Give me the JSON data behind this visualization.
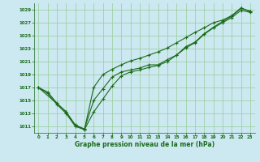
{
  "background_color": "#cce8f0",
  "plot_bg_color": "#cce8f0",
  "grid_color": "#99cc99",
  "line_color": "#1a6b1a",
  "marker_color": "#1a6b1a",
  "xlabel": "Graphe pression niveau de la mer (hPa)",
  "xlim": [
    -0.5,
    23.5
  ],
  "ylim": [
    1010.0,
    1030.0
  ],
  "yticks": [
    1011,
    1013,
    1015,
    1017,
    1019,
    1021,
    1023,
    1025,
    1027,
    1029
  ],
  "xticks": [
    0,
    1,
    2,
    3,
    4,
    5,
    6,
    7,
    8,
    9,
    10,
    11,
    12,
    13,
    14,
    15,
    16,
    17,
    18,
    19,
    20,
    21,
    22,
    23
  ],
  "series1_x": [
    0,
    1,
    2,
    3,
    4,
    5,
    6,
    7,
    8,
    9,
    10,
    11,
    12,
    13,
    14,
    15,
    16,
    17,
    18,
    19,
    20,
    21,
    22,
    23
  ],
  "series1_y": [
    1017.0,
    1016.3,
    1014.6,
    1013.2,
    1011.2,
    1010.6,
    1015.0,
    1016.8,
    1018.6,
    1019.4,
    1019.7,
    1020.0,
    1020.5,
    1020.5,
    1021.3,
    1022.0,
    1023.3,
    1024.0,
    1025.3,
    1026.3,
    1027.2,
    1028.0,
    1029.2,
    1028.8
  ],
  "series2_x": [
    0,
    1,
    2,
    3,
    4,
    5,
    6,
    7,
    8,
    9,
    10,
    11,
    12,
    13,
    14,
    15,
    16,
    17,
    18,
    19,
    20,
    21,
    22,
    23
  ],
  "series2_y": [
    1017.0,
    1016.1,
    1014.4,
    1013.0,
    1011.0,
    1010.5,
    1013.2,
    1015.2,
    1017.2,
    1018.8,
    1019.4,
    1019.7,
    1020.1,
    1020.4,
    1021.0,
    1022.0,
    1023.1,
    1023.9,
    1025.2,
    1026.2,
    1027.0,
    1027.8,
    1028.9,
    1028.6
  ],
  "series3_x": [
    0,
    3,
    4,
    5,
    6,
    7,
    8,
    9,
    10,
    11,
    12,
    13,
    14,
    15,
    16,
    17,
    18,
    19,
    20,
    21,
    22,
    23
  ],
  "series3_y": [
    1017.0,
    1013.3,
    1011.2,
    1010.5,
    1017.0,
    1019.0,
    1019.8,
    1020.5,
    1021.1,
    1021.5,
    1022.0,
    1022.5,
    1023.1,
    1023.9,
    1024.7,
    1025.5,
    1026.2,
    1027.0,
    1027.4,
    1028.1,
    1029.3,
    1028.7
  ]
}
